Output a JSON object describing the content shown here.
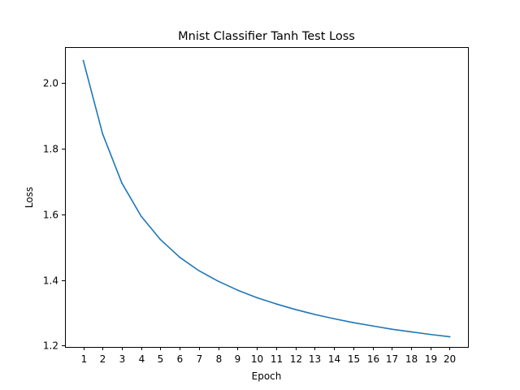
{
  "chart_data": {
    "type": "line",
    "title": "Mnist Classifier Tanh Test Loss",
    "xlabel": "Epoch",
    "ylabel": "Loss",
    "x": [
      1,
      2,
      3,
      4,
      5,
      6,
      7,
      8,
      9,
      10,
      11,
      12,
      13,
      14,
      15,
      16,
      17,
      18,
      19,
      20
    ],
    "x_tick_labels": [
      "1",
      "2",
      "3",
      "4",
      "5",
      "6",
      "7",
      "8",
      "9",
      "10",
      "11",
      "12",
      "13",
      "14",
      "15",
      "16",
      "17",
      "18",
      "19",
      "20"
    ],
    "y_tick_values": [
      1.2,
      1.4,
      1.6,
      1.8,
      2.0
    ],
    "y_tick_labels": [
      "1.2",
      "1.4",
      "1.6",
      "1.8",
      "2.0"
    ],
    "xlim": [
      0.05,
      20.95
    ],
    "ylim": [
      1.196,
      2.109
    ],
    "grid": false,
    "series": [
      {
        "color": "#1f77b4",
        "values": [
          2.068,
          1.845,
          1.695,
          1.594,
          1.523,
          1.469,
          1.428,
          1.396,
          1.369,
          1.346,
          1.327,
          1.31,
          1.295,
          1.282,
          1.27,
          1.26,
          1.25,
          1.242,
          1.234,
          1.227
        ]
      }
    ]
  }
}
